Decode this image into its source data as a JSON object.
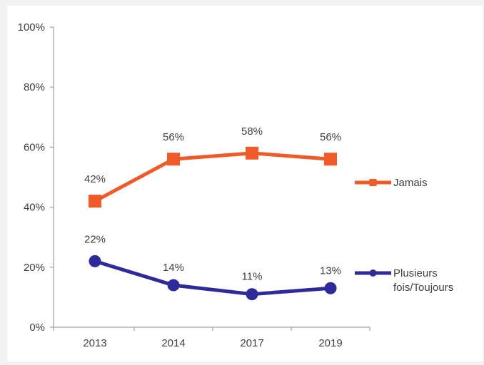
{
  "chart_data": {
    "type": "line",
    "categories": [
      "2013",
      "2014",
      "2017",
      "2019"
    ],
    "y_tick_labels": [
      "0%",
      "20%",
      "40%",
      "60%",
      "80%",
      "100%"
    ],
    "ylim": [
      0,
      100
    ],
    "grid": false,
    "legend_position": "right",
    "series": [
      {
        "name": "Jamais",
        "name_lines": [
          "Jamais"
        ],
        "values": [
          42,
          56,
          58,
          56
        ],
        "value_labels": [
          "42%",
          "56%",
          "58%",
          "56%"
        ],
        "color": "#f05a28",
        "marker": "square"
      },
      {
        "name": "Plusieurs fois/Toujours",
        "name_lines": [
          "Plusieurs",
          "fois/Toujours"
        ],
        "values": [
          22,
          14,
          11,
          13
        ],
        "value_labels": [
          "22%",
          "14%",
          "11%",
          "13%"
        ],
        "color": "#2e2a9a",
        "marker": "circle"
      }
    ]
  }
}
